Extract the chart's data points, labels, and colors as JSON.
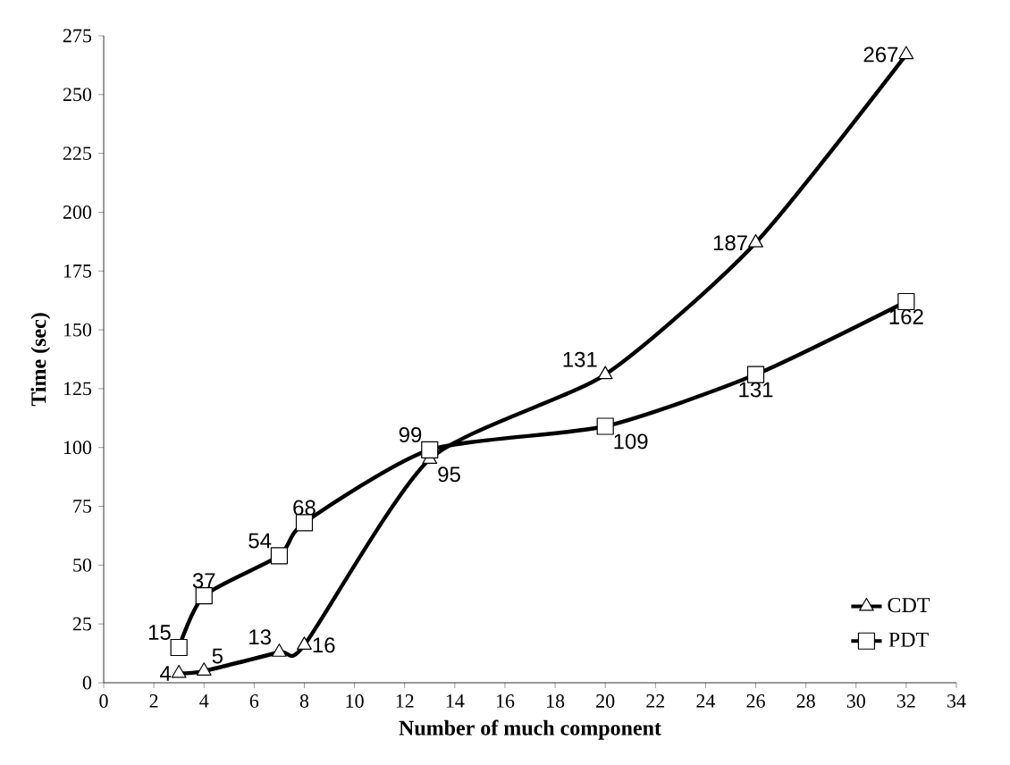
{
  "chart_data": {
    "type": "line",
    "xlabel": "Number of much component",
    "ylabel": "Time (sec)",
    "xlim": [
      0,
      34
    ],
    "xticks": [
      0,
      2,
      4,
      6,
      8,
      10,
      12,
      14,
      16,
      18,
      20,
      22,
      24,
      26,
      28,
      30,
      32,
      34
    ],
    "ylim": [
      0,
      275
    ],
    "yticks": [
      0,
      25,
      50,
      75,
      100,
      125,
      150,
      175,
      200,
      225,
      250,
      275
    ],
    "grid": false,
    "legend": "bottom right",
    "data_labels": true,
    "series": [
      {
        "name": "CDT",
        "color": "#000000",
        "marker": "triangle",
        "x": [
          3,
          4,
          7,
          8,
          13,
          20,
          26,
          32
        ],
        "values": [
          4,
          5,
          13,
          16,
          95,
          131,
          187,
          267
        ]
      },
      {
        "name": "PDT",
        "color": "#000000",
        "marker": "square",
        "x": [
          3,
          4,
          7,
          8,
          13,
          20,
          26,
          32
        ],
        "values": [
          15,
          37,
          54,
          68,
          99,
          109,
          131,
          162
        ]
      }
    ]
  }
}
